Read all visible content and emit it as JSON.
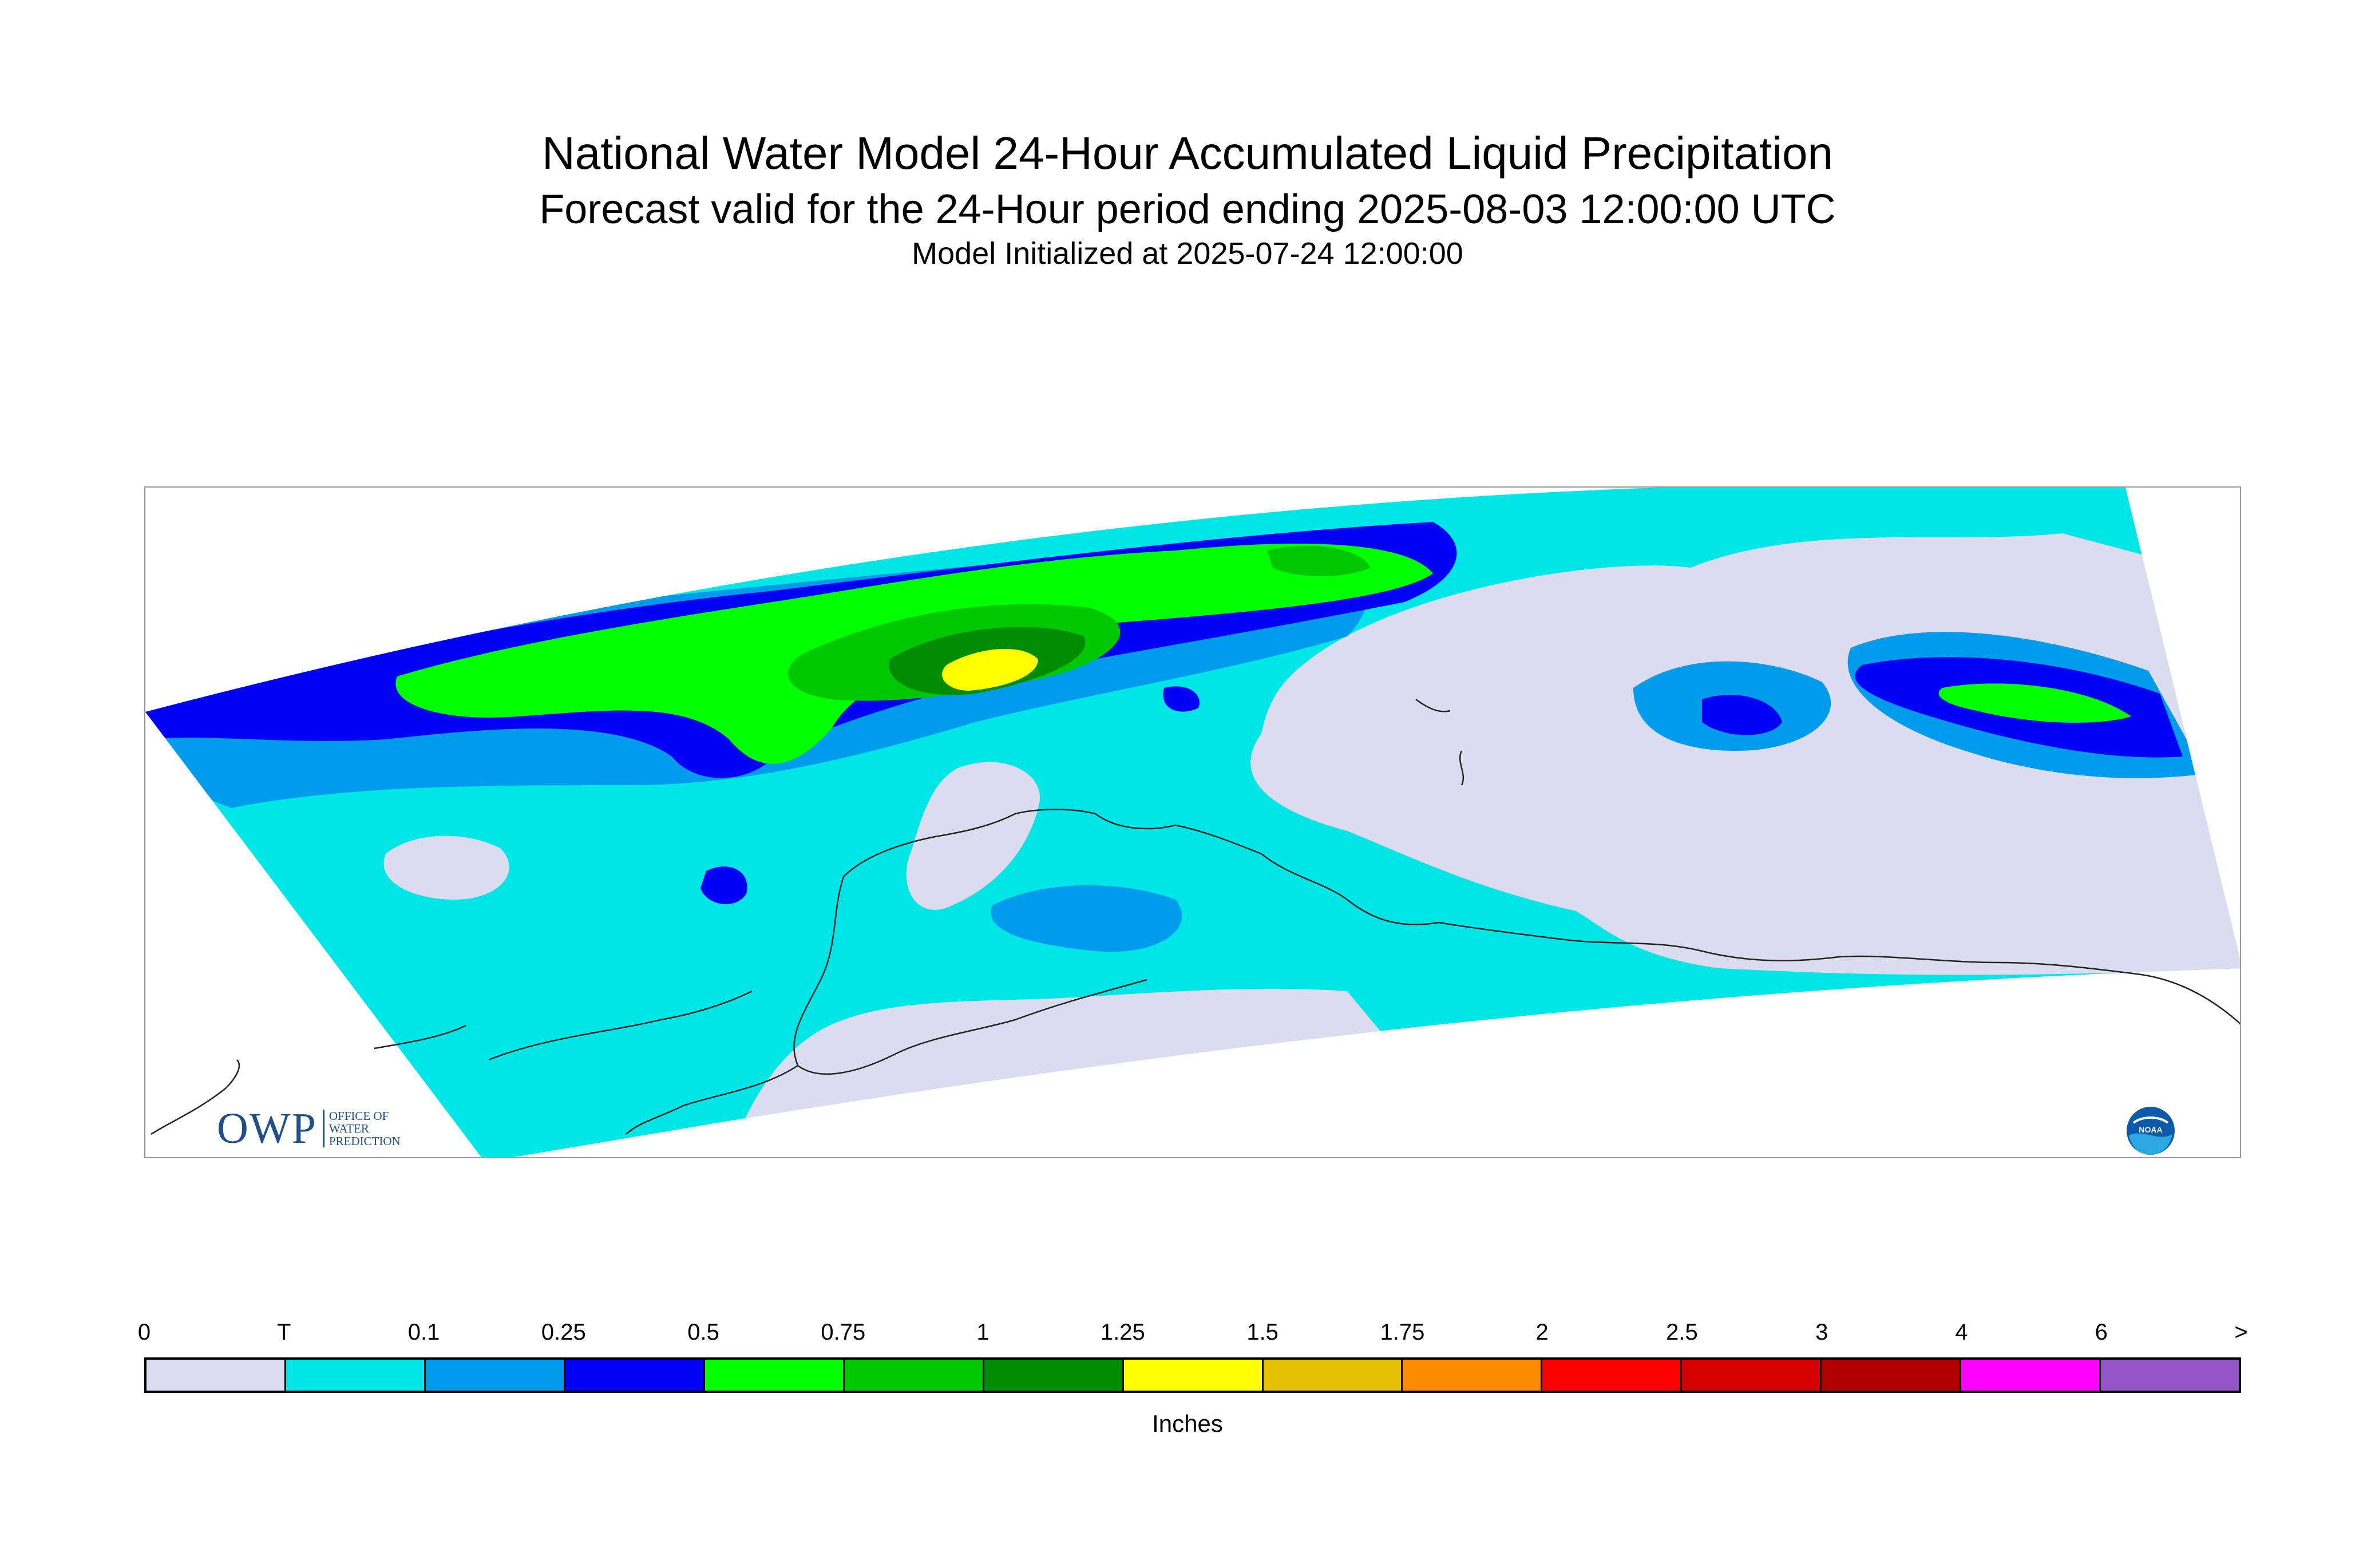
{
  "header": {
    "title": "National Water Model 24-Hour Accumulated Liquid Precipitation",
    "subtitle": "Forecast valid for the 24-Hour period ending 2025-08-03 12:00:00 UTC",
    "init_line": "Model Initialized at 2025-07-24 12:00:00"
  },
  "logos": {
    "owp_word": "OWP",
    "owp_sub_1": "OFFICE OF",
    "owp_sub_2": "WATER",
    "owp_sub_3": "PREDICTION",
    "noaa_text": "NOAA"
  },
  "legend": {
    "unit": "Inches",
    "ticks": [
      "0",
      "T",
      "0.1",
      "0.25",
      "0.5",
      "0.75",
      "1",
      "1.25",
      "1.5",
      "1.75",
      "2",
      "2.5",
      "3",
      "4",
      "6",
      ">"
    ],
    "colors": [
      "#dcdcee",
      "#00e5e5",
      "#009cec",
      "#0000f5",
      "#00ff00",
      "#00c800",
      "#008c00",
      "#ffff00",
      "#e6be00",
      "#ff8c00",
      "#ff0000",
      "#d70000",
      "#b40000",
      "#ff00ff",
      "#9455c8"
    ]
  },
  "map_colors": {
    "none": "#dcdcee",
    "trace": "#00e5e5",
    "light": "#009cec",
    "quarter": "#0000f5",
    "half": "#00ff00",
    "three_quarter": "#00c800",
    "one": "#008c00",
    "one_quarter": "#ffff00",
    "coast": "#222222"
  }
}
